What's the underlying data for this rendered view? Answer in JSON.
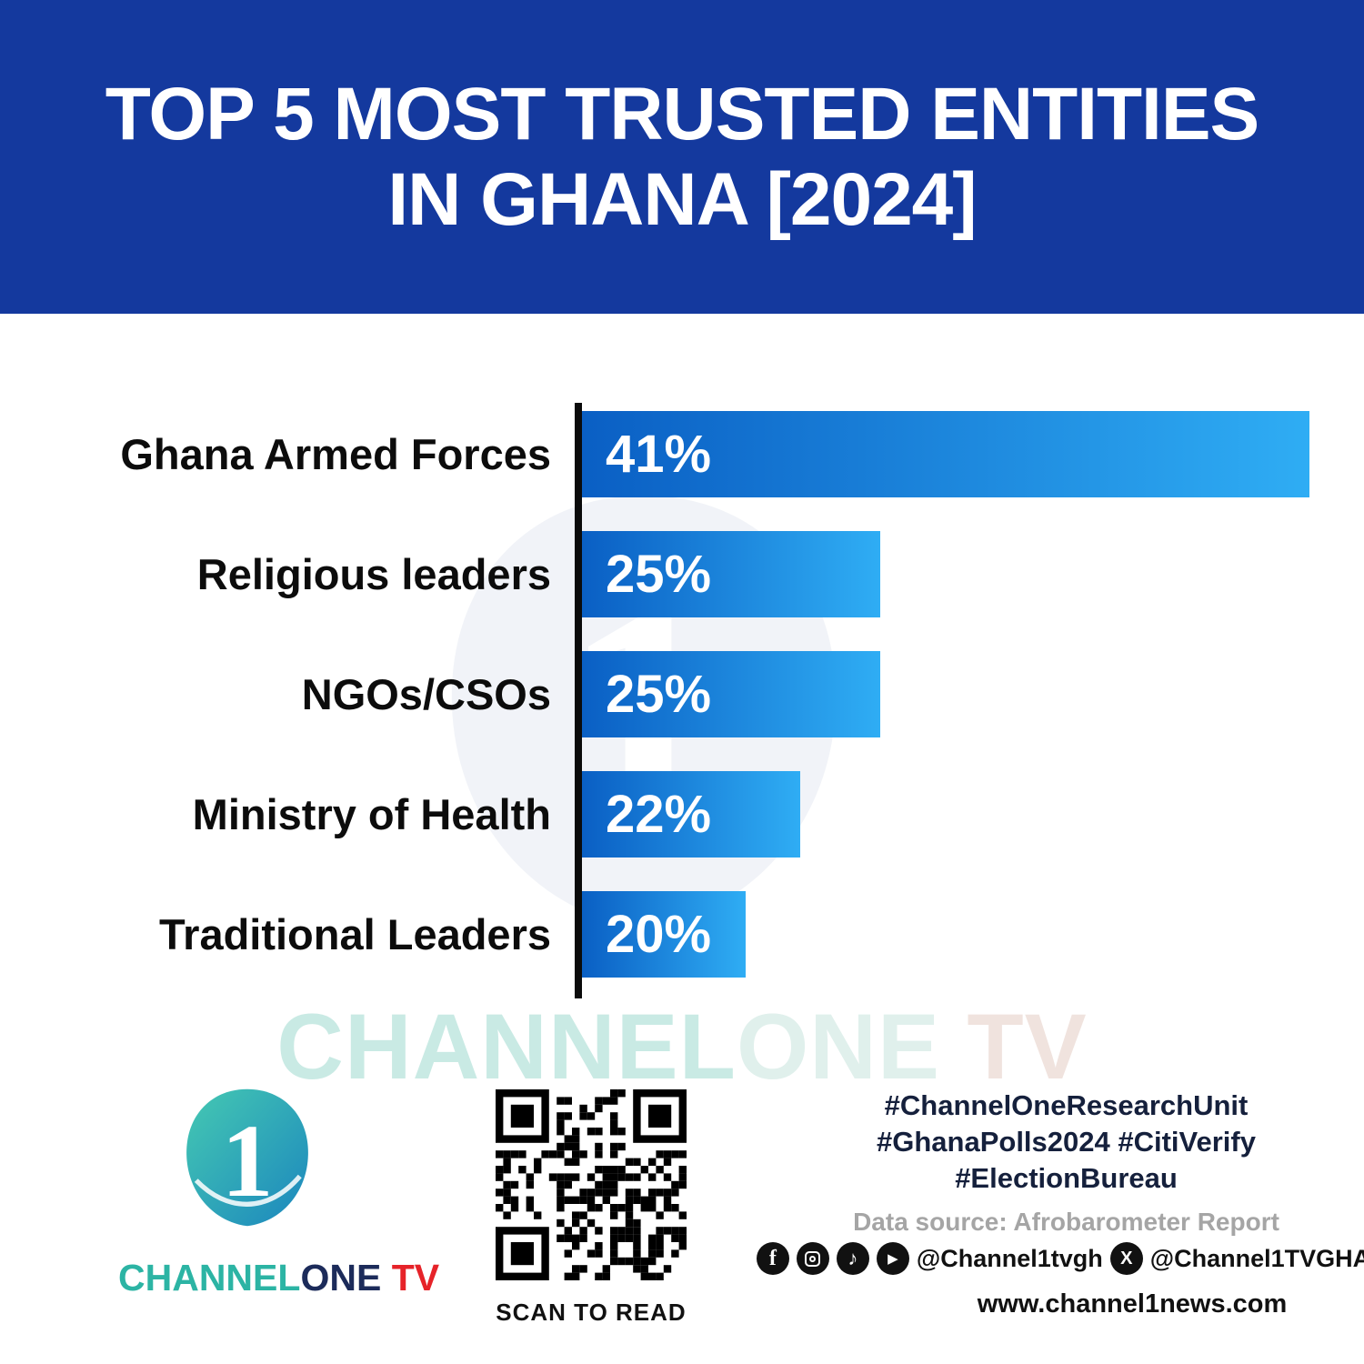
{
  "header": {
    "title_line1": "TOP 5 MOST TRUSTED ENTITIES",
    "title_line2": "IN GHANA [2024]"
  },
  "chart_data": {
    "type": "bar",
    "orientation": "horizontal",
    "title": "TOP 5 MOST TRUSTED ENTITIES IN GHANA [2024]",
    "categories": [
      "Ghana Armed Forces",
      "Religious leaders",
      "NGOs/CSOs",
      "Ministry of Health",
      "Traditional Leaders"
    ],
    "values": [
      41,
      25,
      25,
      22,
      20
    ],
    "value_labels": [
      "41%",
      "25%",
      "25%",
      "22%",
      "20%"
    ],
    "unit": "%",
    "xlim": [
      0,
      41
    ],
    "grid": false,
    "legend": false,
    "bar_display_width_pct": [
      100,
      41,
      41,
      30,
      22.5
    ],
    "bar_color_start": "#0a5fc4",
    "bar_color_end": "#2fadf4"
  },
  "watermark": {
    "part1": "CHANNEL",
    "part2": "ONE",
    "part3": " TV"
  },
  "footer": {
    "brand_part1": "CHANNEL",
    "brand_part2": "ONE",
    "brand_part3": " TV",
    "logo_numeral": "1",
    "qr_caption": "SCAN TO READ",
    "hashtags_line1": "#ChannelOneResearchUnit",
    "hashtags_line2": "#GhanaPolls2024 #CitiVerify",
    "hashtags_line3": "#ElectionBureau",
    "data_source": "Data source: Afrobarometer Report",
    "social_handle1": "@Channel1tvgh",
    "social_handle2": "@Channel1TVGHA",
    "website": "www.channel1news.com",
    "facebook_glyph": "f",
    "tiktok_glyph": "♪",
    "youtube_glyph": "▶",
    "x_glyph": "X",
    "icons": [
      "facebook-icon",
      "instagram-icon",
      "tiktok-icon",
      "youtube-icon",
      "x-icon"
    ]
  },
  "colors": {
    "header_bg": "#14399E",
    "bar_start": "#0a5fc4",
    "bar_end": "#2fadf4",
    "axis_color": "#0b0b0b",
    "label_color": "#0c0c0c",
    "pct_color": "#ffffff",
    "wm_teal": "#c9eae4",
    "wm_light": "#e0f0ec",
    "wm_pink": "#f0e3de",
    "brand_teal": "#2cb4a4",
    "brand_dark": "#1c2b5a",
    "brand_red": "#e62329",
    "hashtag_color": "#15203c",
    "datasource_gray": "#a5a5a5",
    "footer_text": "#111111"
  }
}
